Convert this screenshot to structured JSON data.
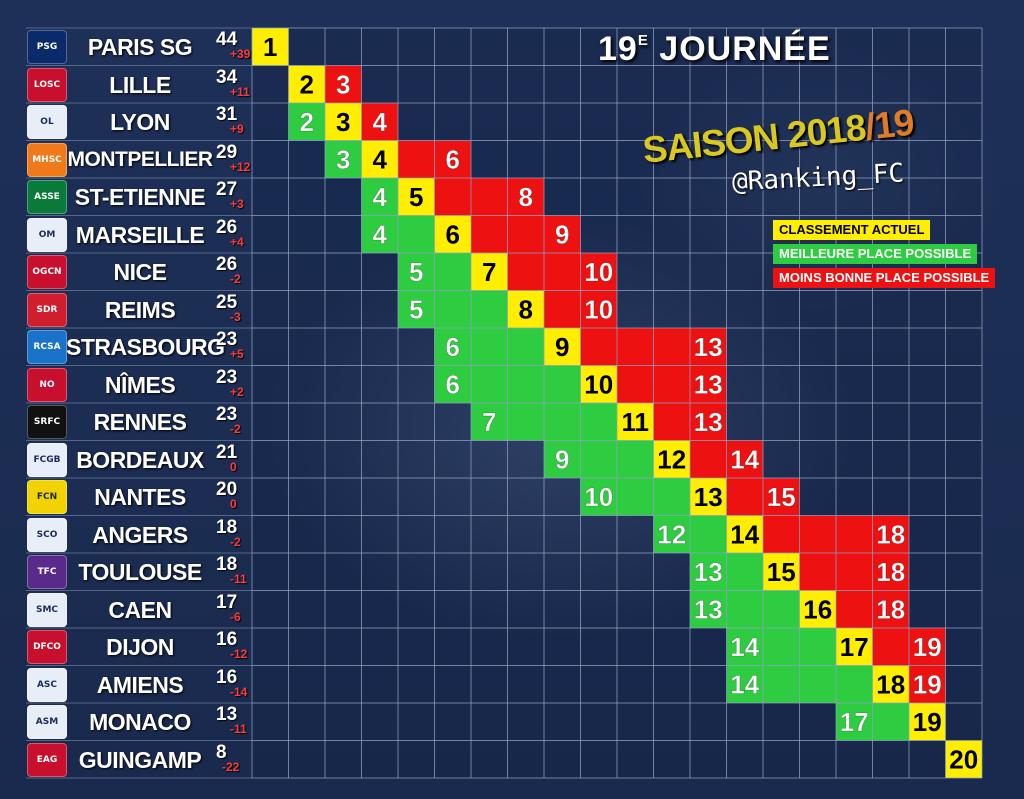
{
  "title_main": "19",
  "title_sup": "E",
  "title_rest": " JOURNÉE",
  "saison_prefix": "SAISON 2018",
  "saison_suffix": "/19",
  "handle": "@Ranking_FC",
  "legend": {
    "current": "CLASSEMENT ACTUEL",
    "best": "MEILLEURE PLACE POSSIBLE",
    "worst": "MOINS BONNE PLACE POSSIBLE"
  },
  "colors": {
    "current": "#ffee00",
    "best": "#2ecc40",
    "worst": "#ee1111",
    "grid": "#8fa0c0"
  },
  "chart_data": {
    "type": "table",
    "columns": 20,
    "teams": [
      {
        "name": "PARIS SG",
        "points": "44",
        "diff": "+39",
        "current": 1,
        "best": 1,
        "worst": 1,
        "logo": "PSG",
        "logo_bg": "#0a2a6b"
      },
      {
        "name": "LILLE",
        "points": "34",
        "diff": "+11",
        "current": 2,
        "best": 2,
        "worst": 3,
        "logo": "LOSC",
        "logo_bg": "#c8102e"
      },
      {
        "name": "LYON",
        "points": "31",
        "diff": "+9",
        "current": 3,
        "best": 2,
        "worst": 4,
        "logo": "OL",
        "logo_bg": "#e8eef8"
      },
      {
        "name": "MONTPELLIER",
        "points": "29",
        "diff": "+12",
        "current": 4,
        "best": 3,
        "worst": 6,
        "logo": "MHSC",
        "logo_bg": "#f07a1a"
      },
      {
        "name": "ST-ETIENNE",
        "points": "27",
        "diff": "+3",
        "current": 5,
        "best": 4,
        "worst": 8,
        "logo": "ASSE",
        "logo_bg": "#0a7a3a"
      },
      {
        "name": "MARSEILLE",
        "points": "26",
        "diff": "+4",
        "current": 6,
        "best": 4,
        "worst": 9,
        "logo": "OM",
        "logo_bg": "#e8eef8"
      },
      {
        "name": "NICE",
        "points": "26",
        "diff": "-2",
        "current": 7,
        "best": 5,
        "worst": 10,
        "logo": "OGCN",
        "logo_bg": "#c8102e"
      },
      {
        "name": "REIMS",
        "points": "25",
        "diff": "-3",
        "current": 8,
        "best": 5,
        "worst": 10,
        "logo": "SDR",
        "logo_bg": "#d01e2e"
      },
      {
        "name": "STRASBOURG",
        "points": "23",
        "diff": "+5",
        "current": 9,
        "best": 6,
        "worst": 13,
        "logo": "RCSA",
        "logo_bg": "#1a73c8"
      },
      {
        "name": "NÎMES",
        "points": "23",
        "diff": "+2",
        "current": 10,
        "best": 6,
        "worst": 13,
        "logo": "NO",
        "logo_bg": "#c8102e"
      },
      {
        "name": "RENNES",
        "points": "23",
        "diff": "-2",
        "current": 11,
        "best": 7,
        "worst": 13,
        "logo": "SRFC",
        "logo_bg": "#111111"
      },
      {
        "name": "BORDEAUX",
        "points": "21",
        "diff": "0",
        "current": 12,
        "best": 9,
        "worst": 14,
        "logo": "FCGB",
        "logo_bg": "#e8eef8"
      },
      {
        "name": "NANTES",
        "points": "20",
        "diff": "0",
        "current": 13,
        "best": 10,
        "worst": 15,
        "logo": "FCN",
        "logo_bg": "#f2d300"
      },
      {
        "name": "ANGERS",
        "points": "18",
        "diff": "-2",
        "current": 14,
        "best": 12,
        "worst": 18,
        "logo": "SCO",
        "logo_bg": "#e8eef8"
      },
      {
        "name": "TOULOUSE",
        "points": "18",
        "diff": "-11",
        "current": 15,
        "best": 13,
        "worst": 18,
        "logo": "TFC",
        "logo_bg": "#5a2a8a"
      },
      {
        "name": "CAEN",
        "points": "17",
        "diff": "-6",
        "current": 16,
        "best": 13,
        "worst": 18,
        "logo": "SMC",
        "logo_bg": "#e8eef8"
      },
      {
        "name": "DIJON",
        "points": "16",
        "diff": "-12",
        "current": 17,
        "best": 14,
        "worst": 19,
        "logo": "DFCO",
        "logo_bg": "#c8102e"
      },
      {
        "name": "AMIENS",
        "points": "16",
        "diff": "-14",
        "current": 18,
        "best": 14,
        "worst": 19,
        "logo": "ASC",
        "logo_bg": "#e8eef8"
      },
      {
        "name": "MONACO",
        "points": "13",
        "diff": "-11",
        "current": 19,
        "best": 17,
        "worst": 19,
        "logo": "ASM",
        "logo_bg": "#e8eef8"
      },
      {
        "name": "GUINGAMP",
        "points": "8",
        "diff": "-22",
        "current": 20,
        "best": 20,
        "worst": 20,
        "logo": "EAG",
        "logo_bg": "#c8102e"
      }
    ]
  }
}
